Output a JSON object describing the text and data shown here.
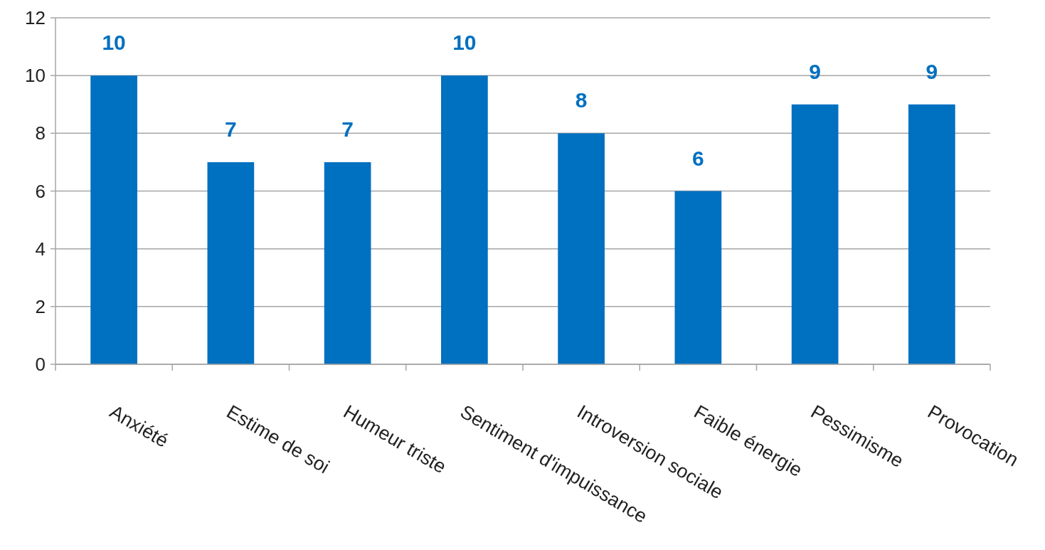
{
  "chart_data": {
    "type": "bar",
    "categories": [
      "Anxiété",
      "Estime de soi",
      "Humeur triste",
      "Sentiment d'impuissance",
      "Introversion sociale",
      "Faible énergie",
      "Pessimisme",
      "Provocation"
    ],
    "values": [
      10,
      7,
      7,
      10,
      8,
      6,
      9,
      9
    ],
    "color": "#0070c0",
    "ylim": [
      0,
      12
    ],
    "yticks": [
      0,
      2,
      4,
      6,
      8,
      10,
      12
    ],
    "grid": "y",
    "data_labels": true
  }
}
